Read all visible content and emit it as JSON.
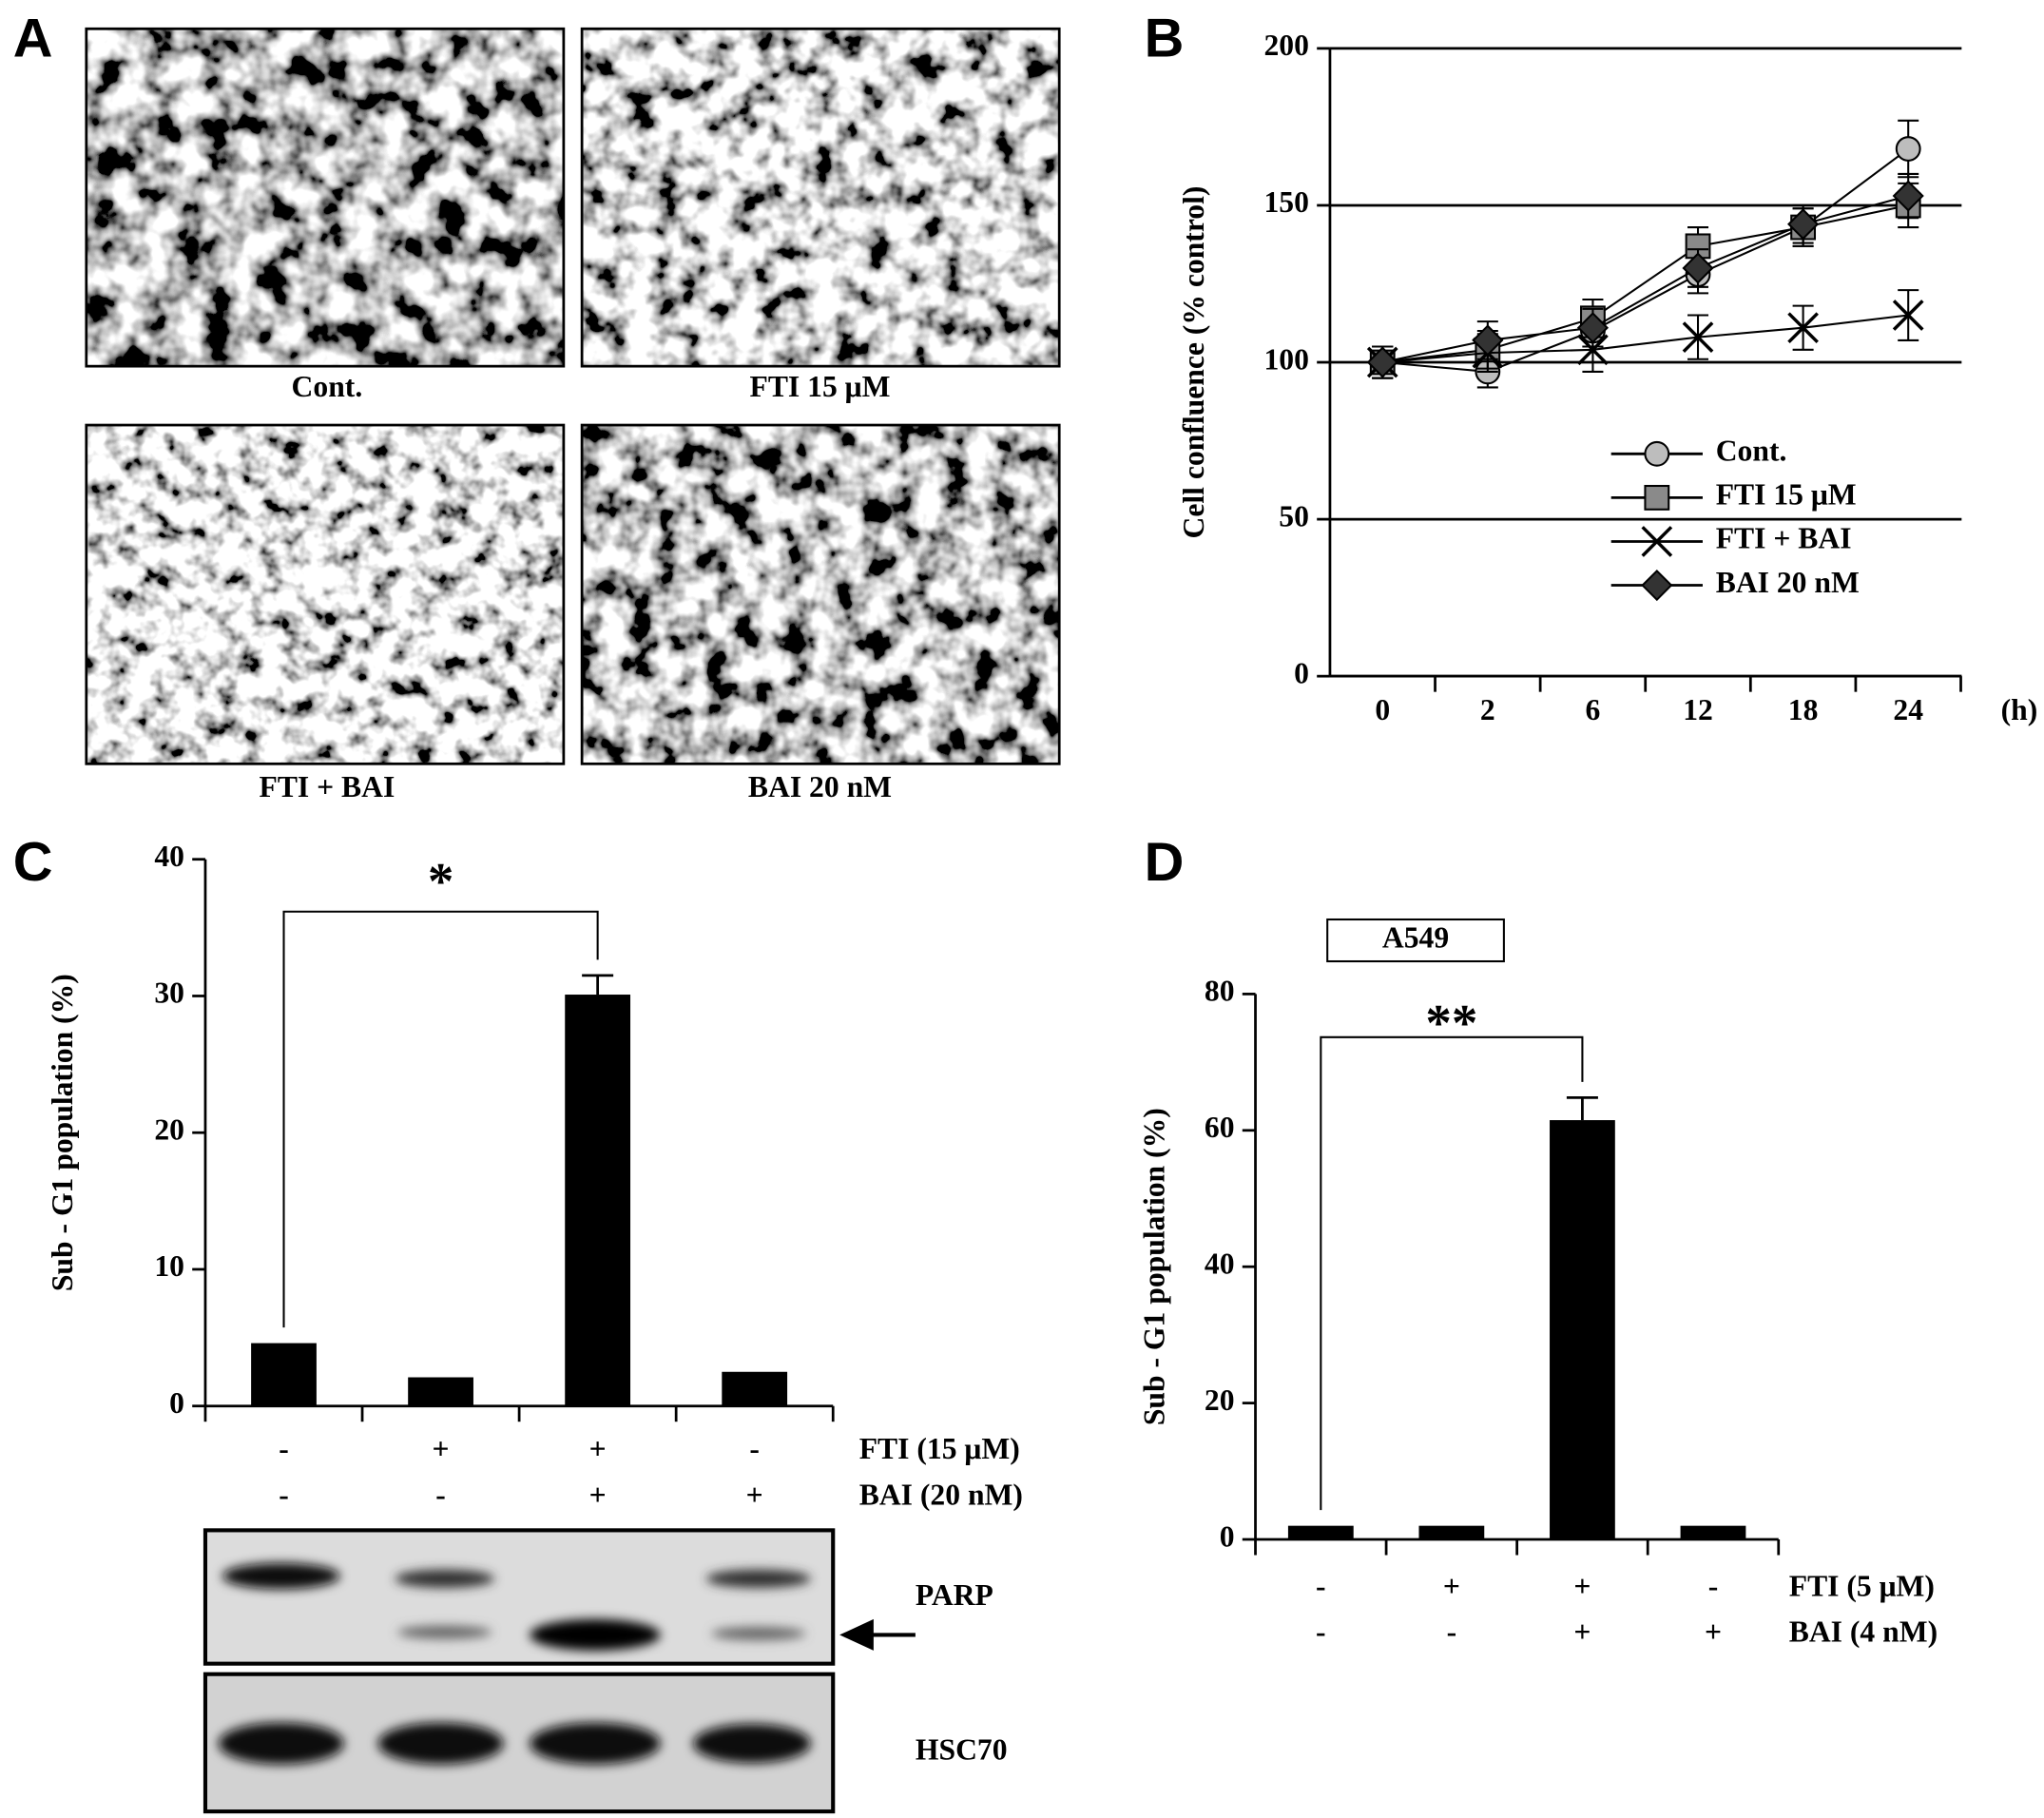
{
  "panel_labels": [
    "A",
    "B",
    "C",
    "D"
  ],
  "micrographs": [
    "Cont.",
    "FTI 15 μM",
    "FTI + BAI",
    "BAI 20 nM"
  ],
  "blot_labels": [
    "PARP",
    "HSC70"
  ],
  "chart_data": [
    {
      "type": "line",
      "ylabel": "Cell confluence (% control)",
      "xlabel": "(h)",
      "categories": [
        "0",
        "2",
        "6",
        "12",
        "18",
        "24"
      ],
      "ylim": [
        0,
        200
      ],
      "yticks": [
        0,
        50,
        100,
        150,
        200
      ],
      "grid": true,
      "legend": "lower center",
      "series": [
        {
          "name": "Cont.",
          "marker": "circle",
          "color": "#bdbdbd",
          "values": [
            100,
            97,
            110,
            128,
            143,
            168
          ],
          "errors": [
            5,
            5,
            5,
            6,
            6,
            9
          ]
        },
        {
          "name": "FTI  15  μM",
          "marker": "square",
          "color": "#8a8a8a",
          "values": [
            100,
            104,
            114,
            137,
            143,
            150
          ],
          "errors": [
            5,
            6,
            6,
            6,
            6,
            7
          ]
        },
        {
          "name": "FTI  + BAI",
          "marker": "x",
          "color": "#000000",
          "values": [
            100,
            103,
            104,
            108,
            111,
            115
          ],
          "errors": [
            5,
            6,
            7,
            7,
            7,
            8
          ]
        },
        {
          "name": "BAI  20  nM",
          "marker": "diamond",
          "color": "#333333",
          "values": [
            100,
            107,
            111,
            130,
            144,
            153
          ],
          "errors": [
            5,
            6,
            6,
            6,
            6,
            7
          ]
        }
      ]
    },
    {
      "type": "bar",
      "ylabel": "Sub - G1 population (%)",
      "color": "#000000",
      "values": [
        4.6,
        2.1,
        30.1,
        2.5
      ],
      "errors": [
        null,
        null,
        1.4,
        null
      ],
      "ylim": [
        0,
        40
      ],
      "yticks": [
        0,
        10,
        20,
        30,
        40
      ],
      "significance": "*",
      "conditions": [
        {
          "label": "FTI (15 μM)",
          "marks": [
            "-",
            "+",
            "+",
            "-"
          ]
        },
        {
          "label": "BAI (20 nM)",
          "marks": [
            "-",
            "-",
            "+",
            "+"
          ]
        }
      ]
    },
    {
      "type": "bar",
      "ylabel": "Sub - G1 population (%)",
      "color": "#000000",
      "values": [
        2,
        2,
        61.5,
        2
      ],
      "errors": [
        null,
        null,
        3.3,
        null
      ],
      "ylim": [
        0,
        80
      ],
      "yticks": [
        0,
        20,
        40,
        60,
        80
      ],
      "significance": "**",
      "cell_line": "A549",
      "conditions": [
        {
          "label": "FTI (5 μM)",
          "marks": [
            "-",
            "+",
            "+",
            "-"
          ]
        },
        {
          "label": "BAI (4 nM)",
          "marks": [
            "-",
            "-",
            "+",
            "+"
          ]
        }
      ]
    }
  ]
}
